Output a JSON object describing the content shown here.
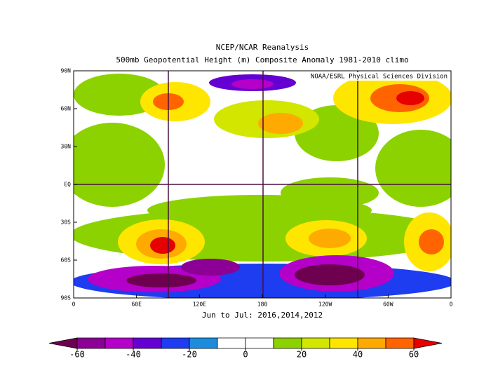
{
  "title": "NCEP/NCAR Reanalysis",
  "subtitle": "500mb Geopotential Height (m) Composite Anomaly 1981-2010 climo",
  "credit": "NOAA/ESRL Physical Sciences Division",
  "lat_labels": [
    "90N",
    "60N",
    "30N",
    "EQ",
    "30S",
    "60S",
    "90S"
  ],
  "lon_labels": [
    "0",
    "60E",
    "120E",
    "180",
    "120W",
    "60W",
    "0"
  ],
  "period": "Jun to Jul: 2016,2014,2012",
  "colorbar": {
    "lim": [
      -70,
      70
    ],
    "ticks": [
      -60,
      -40,
      -20,
      0,
      20,
      40,
      60
    ],
    "colors": [
      "#6e0050",
      "#8c0096",
      "#b400c8",
      "#6400d2",
      "#1e3cf0",
      "#1e8cdc",
      "#ffffff",
      "#ffffff",
      "#8cd200",
      "#d2e600",
      "#ffe600",
      "#ffaa00",
      "#ff6400",
      "#e60000"
    ]
  }
}
